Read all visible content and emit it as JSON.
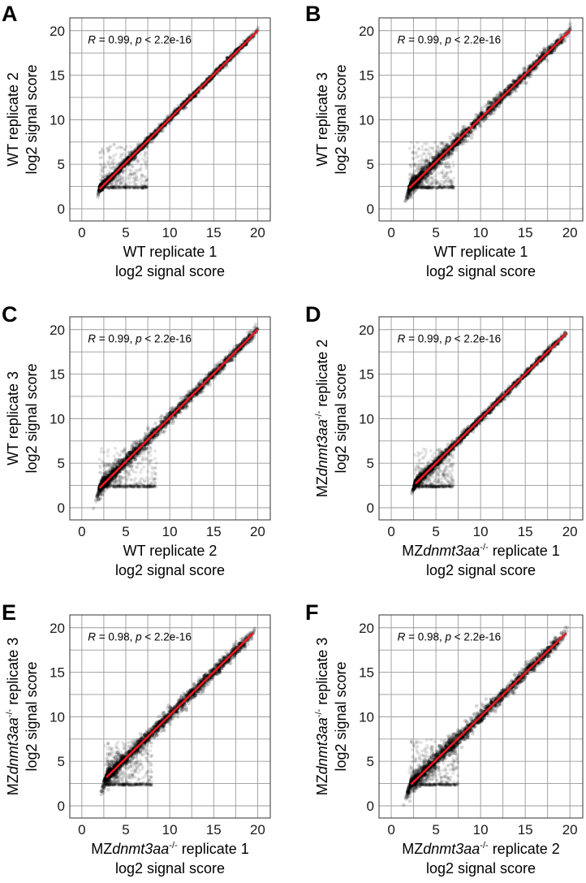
{
  "chart_data": [
    {
      "panel": "A",
      "type": "scatter",
      "xlabel": [
        "WT replicate 1",
        "log2 signal score"
      ],
      "ylabel": [
        "WT replicate 2",
        "log2 signal score"
      ],
      "annotation": {
        "r_label": "R",
        "r_value": " = 0.99, ",
        "p_label": "p",
        "p_value": " < 2.2e-16"
      },
      "xlim": [
        0,
        20
      ],
      "ylim": [
        0,
        20
      ],
      "xticks": [
        0,
        5,
        10,
        15,
        20
      ],
      "yticks": [
        0,
        5,
        10,
        15,
        20
      ],
      "grid": true,
      "fit_line": {
        "color": "#e8191f",
        "x": [
          2.0,
          20.0
        ],
        "y": [
          2.2,
          20.0
        ]
      },
      "cloud": {
        "x_min": 2.0,
        "x_max": 20.0,
        "spread": 0.35,
        "noise_x": [
          2.0,
          7.5
        ],
        "noise_y": [
          2.3,
          7.3
        ]
      }
    },
    {
      "panel": "B",
      "type": "scatter",
      "xlabel": [
        "WT replicate 1",
        "log2 signal score"
      ],
      "ylabel": [
        "WT replicate 3",
        "log2 signal score"
      ],
      "annotation": {
        "r_label": "R",
        "r_value": " = 0.99, ",
        "p_label": "p",
        "p_value": " < 2.2e-16"
      },
      "xlim": [
        0,
        20
      ],
      "ylim": [
        0,
        20
      ],
      "xticks": [
        0,
        5,
        10,
        15,
        20
      ],
      "yticks": [
        0,
        5,
        10,
        15,
        20
      ],
      "grid": true,
      "fit_line": {
        "color": "#e8191f",
        "x": [
          2.0,
          20.0
        ],
        "y": [
          2.3,
          20.0
        ]
      },
      "cloud": {
        "x_min": 2.0,
        "x_max": 20.0,
        "spread": 0.7,
        "noise_x": [
          2.0,
          7.0
        ],
        "noise_y": [
          2.3,
          7.5
        ]
      }
    },
    {
      "panel": "C",
      "type": "scatter",
      "xlabel": [
        "WT replicate 2",
        "log2 signal score"
      ],
      "ylabel": [
        "WT replicate 3",
        "log2 signal score"
      ],
      "annotation": {
        "r_label": "R",
        "r_value": " = 0.99, ",
        "p_label": "p",
        "p_value": " < 2.2e-16"
      },
      "xlim": [
        0,
        20
      ],
      "ylim": [
        0,
        20
      ],
      "xticks": [
        0,
        5,
        10,
        15,
        20
      ],
      "yticks": [
        0,
        5,
        10,
        15,
        20
      ],
      "grid": true,
      "fit_line": {
        "color": "#e8191f",
        "x": [
          2.0,
          20.0
        ],
        "y": [
          2.2,
          20.0
        ]
      },
      "cloud": {
        "x_min": 2.0,
        "x_max": 20.0,
        "spread": 0.7,
        "noise_x": [
          2.0,
          8.5
        ],
        "noise_y": [
          2.3,
          6.8
        ]
      }
    },
    {
      "panel": "D",
      "type": "scatter",
      "xlabel": [
        "MZ",
        "dnmt3aa",
        "-/-",
        " replicate 1",
        "log2 signal score"
      ],
      "ylabel": [
        "MZ",
        "dnmt3aa",
        "-/-",
        " replicate 2",
        "log2 signal score"
      ],
      "annotation": {
        "r_label": "R",
        "r_value": " = 0.99, ",
        "p_label": "p",
        "p_value": " < 2.2e-16"
      },
      "xlim": [
        0,
        20
      ],
      "ylim": [
        0,
        20
      ],
      "xticks": [
        0,
        5,
        10,
        15,
        20
      ],
      "yticks": [
        0,
        5,
        10,
        15,
        20
      ],
      "grid": true,
      "fit_line": {
        "color": "#e8191f",
        "x": [
          2.7,
          19.6
        ],
        "y": [
          2.7,
          19.6
        ]
      },
      "cloud": {
        "x_min": 2.6,
        "x_max": 19.6,
        "spread": 0.4,
        "noise_x": [
          2.6,
          7.0
        ],
        "noise_y": [
          2.3,
          6.6
        ]
      }
    },
    {
      "panel": "E",
      "type": "scatter",
      "xlabel": [
        "MZ",
        "dnmt3aa",
        "-/-",
        " replicate 1",
        "log2 signal score"
      ],
      "ylabel": [
        "MZ",
        "dnmt3aa",
        "-/-",
        " replicate 3",
        "log2 signal score"
      ],
      "annotation": {
        "r_label": "R",
        "r_value": " = 0.98, ",
        "p_label": "p",
        "p_value": " < 2.2e-16"
      },
      "xlim": [
        0,
        20
      ],
      "ylim": [
        0,
        20
      ],
      "xticks": [
        0,
        5,
        10,
        15,
        20
      ],
      "yticks": [
        0,
        5,
        10,
        15,
        20
      ],
      "grid": true,
      "fit_line": {
        "color": "#e8191f",
        "x": [
          2.8,
          19.5
        ],
        "y": [
          3.2,
          19.4
        ]
      },
      "cloud": {
        "x_min": 2.6,
        "x_max": 19.6,
        "spread": 0.75,
        "noise_x": [
          2.6,
          8.0
        ],
        "noise_y": [
          2.3,
          7.2
        ]
      }
    },
    {
      "panel": "F",
      "type": "scatter",
      "xlabel": [
        "MZ",
        "dnmt3aa",
        "-/-",
        " replicate 2",
        "log2 signal score"
      ],
      "ylabel": [
        "MZ",
        "dnmt3aa",
        "-/-",
        " replicate 3",
        "log2 signal score"
      ],
      "annotation": {
        "r_label": "R",
        "r_value": " = 0.98, ",
        "p_label": "p",
        "p_value": " < 2.2e-16"
      },
      "xlim": [
        0,
        20
      ],
      "ylim": [
        0,
        20
      ],
      "xticks": [
        0,
        5,
        10,
        15,
        20
      ],
      "yticks": [
        0,
        5,
        10,
        15,
        20
      ],
      "grid": true,
      "fit_line": {
        "color": "#e8191f",
        "x": [
          2.2,
          19.6
        ],
        "y": [
          2.4,
          19.4
        ]
      },
      "cloud": {
        "x_min": 2.0,
        "x_max": 19.6,
        "spread": 0.8,
        "noise_x": [
          2.0,
          7.5
        ],
        "noise_y": [
          2.3,
          7.5
        ]
      }
    }
  ]
}
